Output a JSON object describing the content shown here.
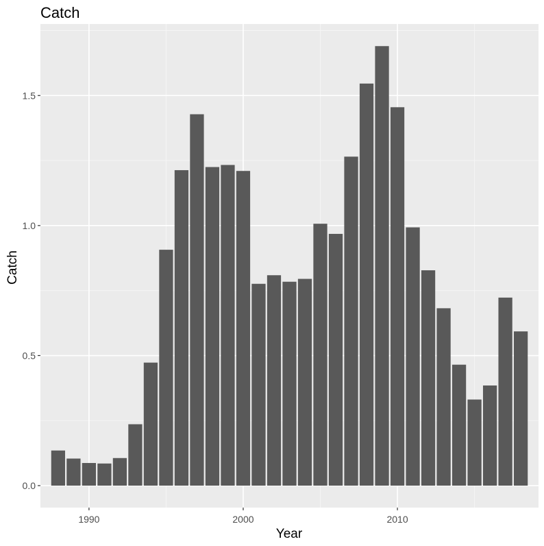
{
  "chart_data": {
    "type": "bar",
    "title": "Catch",
    "xlabel": "Year",
    "ylabel": "Catch",
    "x": [
      1988,
      1989,
      1990,
      1991,
      1992,
      1993,
      1994,
      1995,
      1996,
      1997,
      1998,
      1999,
      2000,
      2001,
      2002,
      2003,
      2004,
      2005,
      2006,
      2007,
      2008,
      2009,
      2010,
      2011,
      2012,
      2013,
      2014,
      2015,
      2016,
      2017,
      2018
    ],
    "values": [
      0.135,
      0.104,
      0.087,
      0.085,
      0.106,
      0.236,
      0.473,
      0.907,
      1.213,
      1.428,
      1.225,
      1.233,
      1.21,
      0.776,
      0.809,
      0.784,
      0.795,
      1.007,
      0.968,
      1.265,
      1.546,
      1.69,
      1.455,
      0.993,
      0.828,
      0.682,
      0.465,
      0.331,
      0.385,
      0.723,
      0.593
    ],
    "xticks": [
      1990,
      2000,
      2010
    ],
    "xtick_labels": [
      "1990",
      "2000",
      "2010"
    ],
    "yticks": [
      0.0,
      0.5,
      1.0,
      1.5
    ],
    "ytick_labels": [
      "0.0",
      "0.5",
      "1.0",
      "1.5"
    ],
    "xlim": [
      1986.85,
      2019.15
    ],
    "ylim": [
      -0.0845,
      1.775
    ],
    "grid": true,
    "legend": "none",
    "colors": {
      "bar": "#595959",
      "panel": "#ebebeb",
      "grid_major": "#ffffff",
      "grid_minor": "#f5f5f5",
      "tick_text": "#4d4d4d",
      "tick_mark": "#333333"
    }
  }
}
